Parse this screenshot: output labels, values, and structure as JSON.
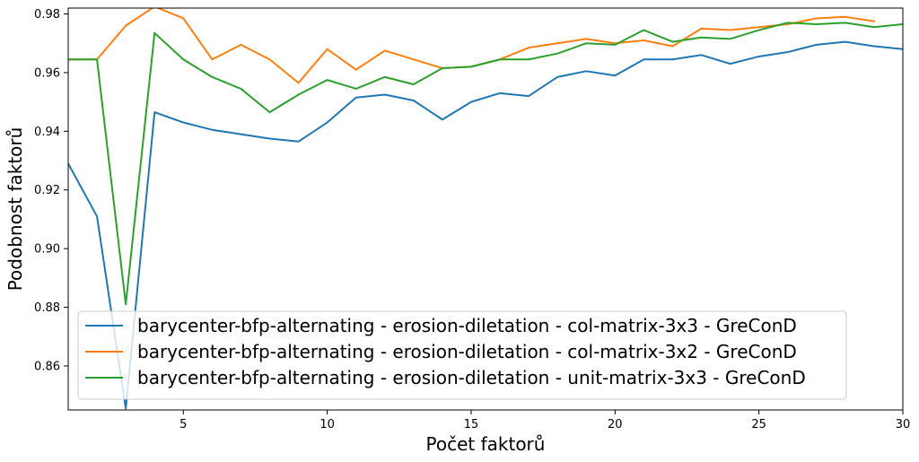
{
  "chart_data": {
    "type": "line",
    "title": "",
    "xlabel": "Počet faktorů",
    "ylabel": "Podobnost faktorů",
    "xlim": [
      1,
      30
    ],
    "ylim": [
      0.845,
      0.982
    ],
    "xticks": [
      5,
      10,
      15,
      20,
      25,
      30
    ],
    "yticks": [
      0.86,
      0.88,
      0.9,
      0.92,
      0.94,
      0.96,
      0.98
    ],
    "ytick_labels": [
      "0.86",
      "0.88",
      "0.90",
      "0.92",
      "0.94",
      "0.96",
      "0.98"
    ],
    "grid": false,
    "legend_position": "lower-right",
    "series": [
      {
        "name": "barycenter-bfp-alternating - erosion-diletation - col-matrix-3x3 - GreConD",
        "color": "#1f77b4",
        "x": [
          1,
          2,
          3,
          4,
          5,
          6,
          7,
          8,
          9,
          10,
          11,
          12,
          13,
          14,
          15,
          16,
          17,
          18,
          19,
          20,
          21,
          22,
          23,
          24,
          25,
          26,
          27,
          28,
          29,
          30
        ],
        "values": [
          0.929,
          0.911,
          0.8455,
          0.9465,
          0.943,
          0.9405,
          0.939,
          0.9375,
          0.9365,
          0.943,
          0.9515,
          0.9525,
          0.9505,
          0.944,
          0.95,
          0.953,
          0.952,
          0.9585,
          0.9605,
          0.959,
          0.9645,
          0.9645,
          0.966,
          0.963,
          0.9655,
          0.967,
          0.9695,
          0.9705,
          0.969,
          0.968
        ]
      },
      {
        "name": "barycenter-bfp-alternating - erosion-diletation - col-matrix-3x2 - GreConD",
        "color": "#ff7f0e",
        "x": [
          1,
          2,
          3,
          4,
          5,
          6,
          7,
          8,
          9,
          10,
          11,
          12,
          13,
          14,
          15,
          16,
          17,
          18,
          19,
          20,
          21,
          22,
          23,
          24,
          25,
          26,
          27,
          28,
          29
        ],
        "values": [
          0.9645,
          0.9645,
          0.976,
          0.9825,
          0.9785,
          0.9645,
          0.9695,
          0.9645,
          0.9565,
          0.968,
          0.961,
          0.9675,
          0.9645,
          0.9615,
          0.962,
          0.9645,
          0.9685,
          0.97,
          0.9715,
          0.97,
          0.971,
          0.969,
          0.975,
          0.9745,
          0.9755,
          0.9765,
          0.9785,
          0.979,
          0.9775
        ]
      },
      {
        "name": "barycenter-bfp-alternating - erosion-diletation - unit-matrix-3x3 - GreConD",
        "color": "#2ca02c",
        "x": [
          1,
          2,
          3,
          4,
          5,
          6,
          7,
          8,
          9,
          10,
          11,
          12,
          13,
          14,
          15,
          16,
          17,
          18,
          19,
          20,
          21,
          22,
          23,
          24,
          25,
          26,
          27,
          28,
          29,
          30
        ],
        "values": [
          0.9645,
          0.9645,
          0.881,
          0.9735,
          0.9645,
          0.9585,
          0.9545,
          0.9465,
          0.9525,
          0.9575,
          0.9545,
          0.9585,
          0.956,
          0.9615,
          0.962,
          0.9645,
          0.9645,
          0.9665,
          0.97,
          0.9695,
          0.9745,
          0.9705,
          0.972,
          0.9715,
          0.9745,
          0.977,
          0.9765,
          0.977,
          0.9755,
          0.9765
        ]
      }
    ]
  }
}
